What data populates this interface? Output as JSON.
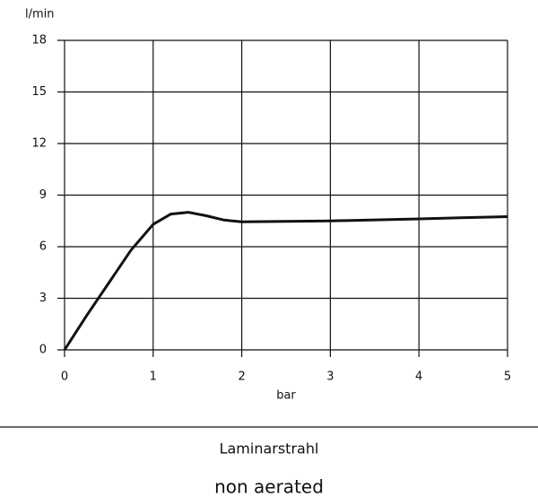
{
  "chart_data": {
    "type": "line",
    "y_label": "l/min",
    "x_label": "bar",
    "x": [
      0,
      0.25,
      0.5,
      0.75,
      1.0,
      1.2,
      1.4,
      1.6,
      1.8,
      2.0,
      3.0,
      4.0,
      5.0
    ],
    "series": [
      {
        "name": "Laminarstrahl",
        "color": "#111111",
        "values": [
          0,
          2.0,
          3.9,
          5.8,
          7.3,
          7.9,
          8.0,
          7.8,
          7.55,
          7.45,
          7.5,
          7.62,
          7.75
        ]
      }
    ],
    "xlim": [
      0,
      5
    ],
    "xticks": [
      0,
      1,
      2,
      3,
      4,
      5
    ],
    "ylim": [
      0,
      18
    ],
    "yticks": [
      0,
      3,
      6,
      9,
      12,
      15,
      18
    ],
    "grid": true
  },
  "caption": {
    "title": "Laminarstrahl",
    "subtitle": "non aerated"
  }
}
